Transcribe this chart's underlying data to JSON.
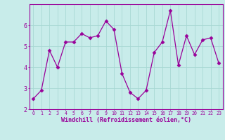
{
  "x": [
    0,
    1,
    2,
    3,
    4,
    5,
    6,
    7,
    8,
    9,
    10,
    11,
    12,
    13,
    14,
    15,
    16,
    17,
    18,
    19,
    20,
    21,
    22,
    23
  ],
  "y": [
    2.5,
    2.9,
    4.8,
    4.0,
    5.2,
    5.2,
    5.6,
    5.4,
    5.5,
    6.2,
    5.8,
    3.7,
    2.8,
    2.5,
    2.9,
    4.7,
    5.2,
    6.7,
    4.1,
    5.5,
    4.6,
    5.3,
    5.4,
    4.2
  ],
  "line_color": "#990099",
  "marker": "D",
  "markersize": 2.5,
  "linewidth": 0.9,
  "bg_color": "#c8ecea",
  "grid_color": "#a8d8d4",
  "xlabel": "Windchill (Refroidissement éolien,°C)",
  "xlabel_color": "#990099",
  "tick_color": "#990099",
  "spine_color": "#990099",
  "ylim": [
    2.0,
    7.0
  ],
  "xlim": [
    -0.5,
    23.5
  ],
  "yticks": [
    2,
    3,
    4,
    5,
    6
  ],
  "xticks": [
    0,
    1,
    2,
    3,
    4,
    5,
    6,
    7,
    8,
    9,
    10,
    11,
    12,
    13,
    14,
    15,
    16,
    17,
    18,
    19,
    20,
    21,
    22,
    23
  ],
  "xlabel_fontsize": 6.0,
  "xlabel_fontweight": "bold",
  "xtick_fontsize": 4.8,
  "ytick_fontsize": 6.0
}
